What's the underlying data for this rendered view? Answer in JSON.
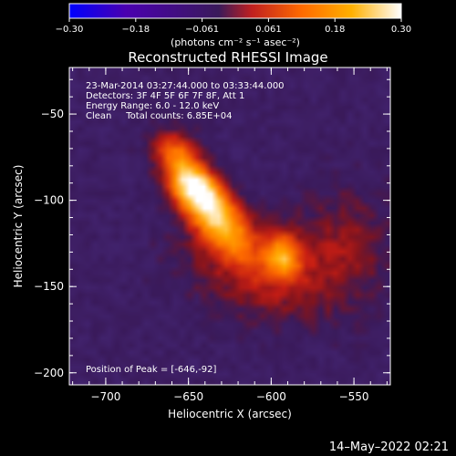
{
  "chart_data": {
    "type": "heatmap",
    "title": "Reconstructed RHESSI Image",
    "colorbar": {
      "ticks": [
        "-0.30",
        "-0.18",
        "-0.061",
        "0.061",
        "0.18",
        "0.30"
      ],
      "range": [
        -0.3,
        0.3
      ],
      "units_label": "(photons cm⁻² s⁻¹ asec⁻²)",
      "colors": [
        "#0000ff",
        "#4a00b0",
        "#3a1a5a",
        "#c02020",
        "#ff6a00",
        "#ffb000",
        "#ffffff"
      ]
    },
    "xlabel": "Heliocentric X (arcsec)",
    "ylabel": "Heliocentric Y (arcsec)",
    "xlim": [
      -722,
      -528
    ],
    "ylim": [
      -207,
      -23
    ],
    "xticks": [
      {
        "value": -700,
        "label": "−700"
      },
      {
        "value": -650,
        "label": "−650"
      },
      {
        "value": -600,
        "label": "−600"
      },
      {
        "value": -550,
        "label": "−550"
      }
    ],
    "yticks": [
      {
        "value": -50,
        "label": "−50"
      },
      {
        "value": -100,
        "label": "−100"
      },
      {
        "value": -150,
        "label": "−150"
      },
      {
        "value": -200,
        "label": "−200"
      }
    ],
    "annotations": [
      "23-Mar-2014 03:27:44.000 to 03:33:44.000",
      "Detectors: 3F 4F 5F 6F 7F 8F, Att 1",
      "Energy Range: 6.0 - 12.0 keV",
      "Clean     Total counts: 6.85E+04"
    ],
    "peak_label": "Position of Peak = [-646,-92]",
    "peak": [
      -646,
      -92
    ],
    "background_level": -0.05,
    "sources": [
      {
        "x": -646,
        "y": -92,
        "sigma_x": 12,
        "sigma_y": 8,
        "angle_deg": -42,
        "amplitude": 0.34
      },
      {
        "x": -632,
        "y": -112,
        "sigma_x": 16,
        "sigma_y": 9,
        "angle_deg": -45,
        "amplitude": 0.25
      },
      {
        "x": -658,
        "y": -72,
        "sigma_x": 10,
        "sigma_y": 8,
        "angle_deg": -30,
        "amplitude": 0.14
      },
      {
        "x": -593,
        "y": -132,
        "sigma_x": 7,
        "sigma_y": 8,
        "angle_deg": 0,
        "amplitude": 0.19
      },
      {
        "x": -605,
        "y": -140,
        "sigma_x": 30,
        "sigma_y": 18,
        "angle_deg": -15,
        "amplitude": 0.1
      },
      {
        "x": -555,
        "y": -125,
        "sigma_x": 18,
        "sigma_y": 22,
        "angle_deg": 0,
        "amplitude": 0.06
      }
    ]
  },
  "footer": {
    "date": "14–May–2022 02:21"
  }
}
